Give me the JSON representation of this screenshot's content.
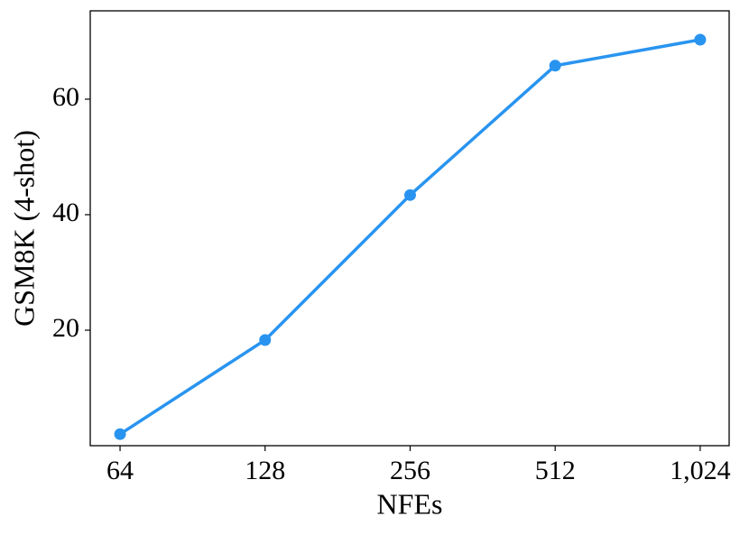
{
  "chart_data": {
    "type": "line",
    "x_label": "NFEs",
    "y_label": "GSM8K (4-shot)",
    "x": [
      64,
      128,
      256,
      512,
      1024
    ],
    "series": [
      {
        "name": "GSM8K",
        "color": "#2994f0",
        "values": [
          2.0,
          18.3,
          43.4,
          65.8,
          70.3
        ]
      }
    ],
    "xscale": "log",
    "xlim": [
      55.5,
      1176
    ],
    "xticks": [
      64,
      128,
      256,
      512,
      {
        "value": 1024,
        "label": "1,024"
      }
    ],
    "ylim": [
      0,
      75.3
    ],
    "yticks": [
      20,
      40,
      60
    ],
    "grid": false
  }
}
